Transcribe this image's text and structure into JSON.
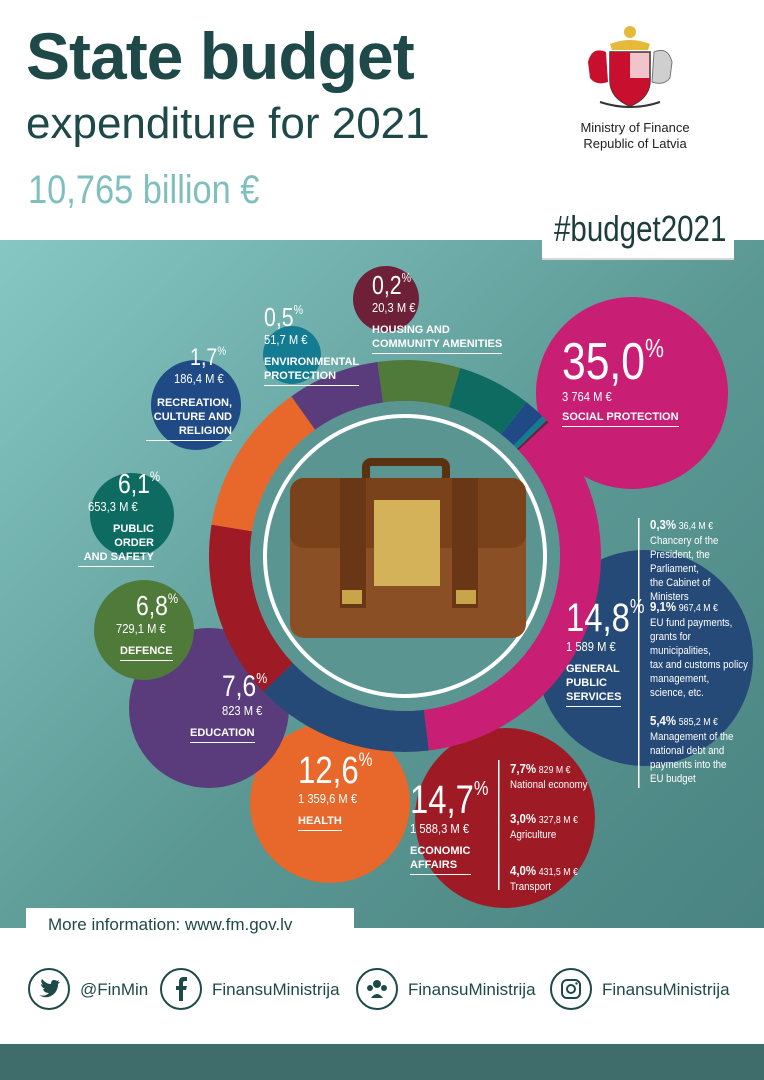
{
  "header": {
    "title": "State budget",
    "subtitle": "expenditure for 2021",
    "total": "10,765 billion €",
    "ministry_line1": "Ministry of Finance",
    "ministry_line2": "Republic of Latvia",
    "hashtag": "#budget2021"
  },
  "chart_data": {
    "type": "pie",
    "total": "10,765 billion €",
    "slices": [
      {
        "label": "SOCIAL PROTECTION",
        "percent": 35.0,
        "percent_text": "35,0",
        "amount": "3 764 M €",
        "color": "#c81e74"
      },
      {
        "label": "GENERAL PUBLIC SERVICES",
        "percent": 14.8,
        "percent_text": "14,8",
        "amount": "1 589 M €",
        "color": "#254a78"
      },
      {
        "label": "ECONOMIC AFFAIRS",
        "percent": 14.7,
        "percent_text": "14,7",
        "amount": "1 588,3 M €",
        "color": "#9e1b26"
      },
      {
        "label": "HEALTH",
        "percent": 12.6,
        "percent_text": "12,6",
        "amount": "1 359,6 M €",
        "color": "#e8672a"
      },
      {
        "label": "EDUCATION",
        "percent": 7.6,
        "percent_text": "7,6",
        "amount": "823 M €",
        "color": "#5a3b7c"
      },
      {
        "label": "DEFENCE",
        "percent": 6.8,
        "percent_text": "6,8",
        "amount": "729,1 M €",
        "color": "#4f7a3a"
      },
      {
        "label": "PUBLIC ORDER AND SAFETY",
        "percent": 6.1,
        "percent_text": "6,1",
        "amount": "653,3 M €",
        "color": "#0e6b62"
      },
      {
        "label": "RECREATION, CULTURE AND RELIGION",
        "percent": 1.7,
        "percent_text": "1,7",
        "amount": "186,4 M €",
        "color": "#1f4a86"
      },
      {
        "label": "ENVIRONMENTAL PROTECTION",
        "percent": 0.5,
        "percent_text": "0,5",
        "amount": "51,7 M €",
        "color": "#137c93"
      },
      {
        "label": "HOUSING AND COMMUNITY AMENITIES",
        "percent": 0.2,
        "percent_text": "0,2",
        "amount": "20,3 M €",
        "color": "#6e2038"
      }
    ],
    "labels": {
      "social": {
        "line1": "SOCIAL PROTECTION"
      },
      "general": {
        "line1": "GENERAL",
        "line2": "PUBLIC",
        "line3": "SERVICES"
      },
      "economic": {
        "line1": "ECONOMIC",
        "line2": "AFFAIRS"
      },
      "health": {
        "line1": "HEALTH"
      },
      "education": {
        "line1": "EDUCATION"
      },
      "defence": {
        "line1": "DEFENCE"
      },
      "public_order": {
        "line1": "PUBLIC",
        "line2": "ORDER",
        "line3": "AND SAFETY"
      },
      "recreation": {
        "line1": "RECREATION,",
        "line2": "CULTURE AND",
        "line3": "RELIGION"
      },
      "environmental": {
        "line1": "ENVIRONMENTAL",
        "line2": "PROTECTION"
      },
      "housing": {
        "line1": "HOUSING AND",
        "line2": "COMMUNITY AMENITIES"
      }
    },
    "general_breakdown": [
      {
        "percent": "0,3%",
        "amount": "36,4 M €",
        "lines": [
          "Chancery of the",
          "President, the Parliament,",
          "the Cabinet of Ministers"
        ]
      },
      {
        "percent": "9,1%",
        "amount": "967,4 M €",
        "lines": [
          "EU fund payments,",
          "grants for municipalities,",
          "tax and customs policy",
          "management,",
          "science, etc."
        ]
      },
      {
        "percent": "5,4%",
        "amount": "585,2 M €",
        "lines": [
          "Management of the",
          "national debt and",
          "payments into the",
          "EU budget"
        ]
      }
    ],
    "economic_breakdown": [
      {
        "percent": "7,7%",
        "amount": "829 M €",
        "label": "National economy"
      },
      {
        "percent": "3,0%",
        "amount": "327,8 M €",
        "label": "Agriculture"
      },
      {
        "percent": "4,0%",
        "amount": "431,5 M €",
        "label": "Transport"
      }
    ]
  },
  "footer": {
    "more_info": "More information: www.fm.gov.lv",
    "twitter": "@FinMin",
    "facebook": "FinansuMinistrija",
    "draugiem": "FinansuMinistrija",
    "instagram": "FinansuMinistrija",
    "icons": [
      "twitter-icon",
      "facebook-icon",
      "draugiem-icon",
      "instagram-icon"
    ]
  }
}
